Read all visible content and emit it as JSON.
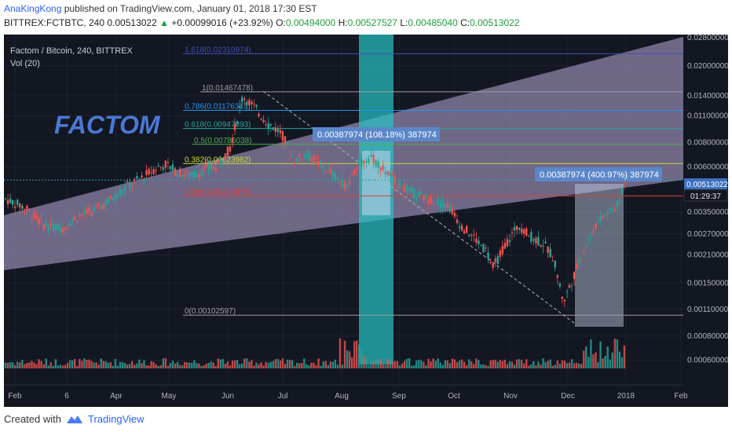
{
  "header": {
    "author": "AnaKingKong",
    "published": "published on TradingView.com, January 01, 2018 17:30 EST",
    "symbol": "BITTREX:FCTBTC, 240",
    "last": "0.00513022",
    "change": "+0.00099016 (+23.92%)",
    "o_label": "O:",
    "o_val": "0.00494000",
    "h_label": "H:",
    "h_val": "0.00527527",
    "l_label": "L:",
    "l_val": "0.00485040",
    "c_label": "C:",
    "c_val": "0.00513022"
  },
  "legend": {
    "title": "Factom / Bitcoin, 240, BITTREX",
    "volume": "Vol (20)"
  },
  "watermark": "FACTOM",
  "footer": {
    "created_with": "Created with",
    "brand": "TradingView"
  },
  "colors": {
    "background": "#131722",
    "channel_fill": "#b9a9d8",
    "highlight": "#27c5c5",
    "candle_up": "#26a69a",
    "candle_down": "#ef5350",
    "watermark": "#4a78d4",
    "label_bg": "#5b87c9",
    "price_tag": "#3b6fc2"
  },
  "chart_data": {
    "type": "candlestick",
    "title": "Factom / Bitcoin, 240, BITTREX",
    "y_scale": "log",
    "ylim": [
      0.00057,
      0.0285
    ],
    "y_ticks": [
      "0.02800000",
      "0.02000000",
      "0.01400000",
      "0.01100000",
      "0.00800000",
      "0.00600000",
      "0.00350000",
      "0.00270000",
      "0.00210000",
      "0.00150000",
      "0.00110000",
      "0.00080000",
      "0.00060000"
    ],
    "x_ticks": [
      "Feb",
      "6",
      "Apr",
      "May",
      "Jun",
      "Jul",
      "Aug",
      "Sep",
      "Oct",
      "Nov",
      "Dec",
      "2018",
      "Feb"
    ],
    "current_price": "0.00513022",
    "countdown": "01:29:37",
    "fib_levels": [
      {
        "label": "1.618(0.02310974)",
        "value": 0.02310974
      },
      {
        "label": "1(0.01467478)",
        "value": 0.01467478
      },
      {
        "label": "0.786(0.01176313)",
        "value": 0.01176313
      },
      {
        "label": "0.618(0.00947893)",
        "value": 0.00947893
      },
      {
        "label": "0.5(0.00785038)",
        "value": 0.00785038
      },
      {
        "label": "0.382(0.00623982)",
        "value": 0.00623982
      },
      {
        "label": "0.236(0.00424879)",
        "value": 0.00424879
      },
      {
        "label": "0(0.00102597)",
        "value": 0.00102597
      }
    ],
    "measure_labels": [
      {
        "text": "0.00387974 (108.18%) 387974"
      },
      {
        "text": "0.00387974 (400.97%) 387974"
      }
    ],
    "price_path": [
      [
        0.0,
        0.0041
      ],
      [
        0.03,
        0.0037
      ],
      [
        0.06,
        0.003
      ],
      [
        0.09,
        0.0029
      ],
      [
        0.11,
        0.0033
      ],
      [
        0.14,
        0.0036
      ],
      [
        0.17,
        0.0042
      ],
      [
        0.19,
        0.0048
      ],
      [
        0.21,
        0.0052
      ],
      [
        0.23,
        0.0058
      ],
      [
        0.25,
        0.0062
      ],
      [
        0.27,
        0.0056
      ],
      [
        0.29,
        0.0054
      ],
      [
        0.31,
        0.0058
      ],
      [
        0.33,
        0.006
      ],
      [
        0.35,
        0.0075
      ],
      [
        0.37,
        0.014
      ],
      [
        0.39,
        0.012
      ],
      [
        0.41,
        0.01
      ],
      [
        0.43,
        0.009
      ],
      [
        0.45,
        0.0065
      ],
      [
        0.47,
        0.007
      ],
      [
        0.49,
        0.0062
      ],
      [
        0.51,
        0.0055
      ],
      [
        0.53,
        0.0048
      ],
      [
        0.55,
        0.0062
      ],
      [
        0.57,
        0.0068
      ],
      [
        0.59,
        0.0058
      ],
      [
        0.61,
        0.005
      ],
      [
        0.63,
        0.0045
      ],
      [
        0.65,
        0.0042
      ],
      [
        0.67,
        0.004
      ],
      [
        0.69,
        0.0038
      ],
      [
        0.71,
        0.003
      ],
      [
        0.73,
        0.0026
      ],
      [
        0.75,
        0.0022
      ],
      [
        0.76,
        0.0018
      ],
      [
        0.78,
        0.0024
      ],
      [
        0.8,
        0.003
      ],
      [
        0.82,
        0.0026
      ],
      [
        0.84,
        0.0024
      ],
      [
        0.855,
        0.002
      ],
      [
        0.87,
        0.0012
      ],
      [
        0.885,
        0.0016
      ],
      [
        0.9,
        0.0022
      ],
      [
        0.92,
        0.003
      ],
      [
        0.94,
        0.0035
      ],
      [
        0.955,
        0.0038
      ],
      [
        0.965,
        0.0051
      ]
    ]
  }
}
